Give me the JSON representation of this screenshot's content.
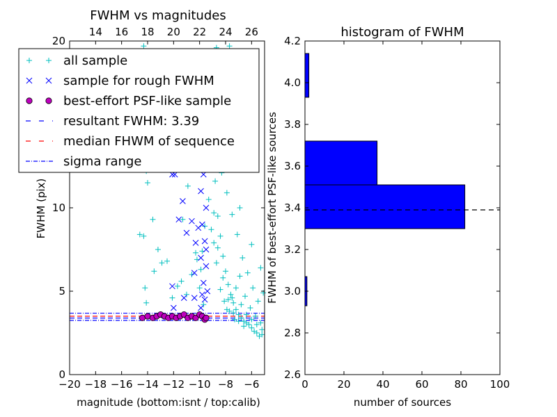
{
  "chart_data": [
    {
      "type": "scatter",
      "title": "FWHM vs magnitudes",
      "xlabel": "magnitude (bottom:isnt / top:calib)",
      "ylabel": "FWHM (pix)",
      "xlim": [
        -20,
        -5
      ],
      "ylim": [
        0,
        20
      ],
      "x_ticks": [
        -20,
        -18,
        -16,
        -14,
        -12,
        -10,
        -8,
        -6
      ],
      "x_tick_labels": [
        "−20",
        "−18",
        "−16",
        "−14",
        "−12",
        "−10",
        "−8",
        "−6"
      ],
      "y_ticks": [
        0,
        5,
        10,
        20
      ],
      "y_tick_labels": [
        "0",
        "5",
        "10",
        "20"
      ],
      "top_axis": {
        "offset": 32,
        "ticks": [
          14,
          16,
          18,
          20,
          22,
          24,
          26
        ],
        "tick_labels": [
          "14",
          "16",
          "18",
          "20",
          "22",
          "24",
          "26"
        ]
      },
      "grid": false,
      "legend_position": "top-left",
      "series": [
        {
          "name": "all sample",
          "marker": "+",
          "color": "#00bfbf",
          "points": [
            [
              -14.6,
              8.4
            ],
            [
              -14.3,
              8.3
            ],
            [
              -14.2,
              5.2
            ],
            [
              -14.1,
              4.3
            ],
            [
              -13.9,
              3.5
            ],
            [
              -13.6,
              9.3
            ],
            [
              -13.5,
              6.2
            ],
            [
              -13.2,
              7.5
            ],
            [
              -12.9,
              6.7
            ],
            [
              -12.5,
              6.8
            ],
            [
              -12.1,
              4.6
            ],
            [
              -11.7,
              5.3
            ],
            [
              -11.4,
              5.6
            ],
            [
              -11.0,
              4.8
            ],
            [
              -10.6,
              6.0
            ],
            [
              -10.3,
              7.3
            ],
            [
              -14.3,
              19.7
            ],
            [
              -14.1,
              12.2
            ],
            [
              -14.0,
              11.5
            ],
            [
              -10.9,
              11.3
            ],
            [
              -11.3,
              9.3
            ],
            [
              -10.2,
              6.9
            ],
            [
              -10.0,
              5.2
            ],
            [
              -9.7,
              4.2
            ],
            [
              -9.5,
              16.5
            ],
            [
              -9.2,
              19.3
            ],
            [
              -9.0,
              14.3
            ],
            [
              -8.8,
              11.6
            ],
            [
              -8.6,
              9.5
            ],
            [
              -8.4,
              8.3
            ],
            [
              -8.2,
              7.1
            ],
            [
              -8.0,
              6.2
            ],
            [
              -7.8,
              5.4
            ],
            [
              -7.6,
              4.8
            ],
            [
              -7.4,
              4.3
            ],
            [
              -7.2,
              3.9
            ],
            [
              -7.0,
              3.6
            ],
            [
              -6.8,
              3.4
            ],
            [
              -6.6,
              3.2
            ],
            [
              -6.4,
              3.1
            ],
            [
              -6.2,
              3.0
            ],
            [
              -6.0,
              2.8
            ],
            [
              -5.8,
              2.6
            ],
            [
              -5.6,
              2.5
            ],
            [
              -5.4,
              2.3
            ],
            [
              -5.2,
              2.4
            ],
            [
              -8.5,
              13.8
            ],
            [
              -8.3,
              12.1
            ],
            [
              -7.9,
              10.9
            ],
            [
              -7.5,
              9.6
            ],
            [
              -7.1,
              8.4
            ],
            [
              -6.7,
              7.0
            ],
            [
              -6.3,
              6.1
            ],
            [
              -5.9,
              5.2
            ],
            [
              -5.5,
              4.4
            ],
            [
              -8.7,
              19.6
            ],
            [
              -8.1,
              18.3
            ],
            [
              -7.7,
              19.7
            ],
            [
              -7.3,
              18.8
            ],
            [
              -8.9,
              9.7
            ],
            [
              -8.6,
              7.6
            ],
            [
              -8.2,
              5.8
            ],
            [
              -7.8,
              4.5
            ],
            [
              -7.4,
              3.7
            ],
            [
              -7.0,
              3.2
            ],
            [
              -6.6,
              2.9
            ],
            [
              -9.3,
              10.5
            ],
            [
              -9.1,
              8.7
            ],
            [
              -8.9,
              7.9
            ],
            [
              -8.7,
              6.7
            ],
            [
              -8.4,
              5.1
            ],
            [
              -8.1,
              4.4
            ],
            [
              -7.7,
              3.8
            ],
            [
              -7.3,
              3.3
            ],
            [
              -6.9,
              5.9
            ],
            [
              -6.5,
              4.7
            ],
            [
              -6.1,
              4.0
            ],
            [
              -5.7,
              3.5
            ],
            [
              -5.3,
              3.1
            ],
            [
              -5.1,
              4.9
            ],
            [
              -5.3,
              6.4
            ],
            [
              -6.0,
              7.8
            ],
            [
              -6.9,
              10.0
            ],
            [
              -7.6,
              12.3
            ],
            [
              -8.0,
              14.6
            ],
            [
              -8.4,
              16.2
            ],
            [
              -8.8,
              17.5
            ],
            [
              -9.4,
              12.8
            ],
            [
              -9.6,
              8.9
            ],
            [
              -9.8,
              7.4
            ],
            [
              -9.9,
              6.3
            ],
            [
              -7.9,
              3.9
            ],
            [
              -7.5,
              4.6
            ],
            [
              -7.2,
              5.2
            ],
            [
              -6.8,
              4.2
            ],
            [
              -6.4,
              3.6
            ],
            [
              -6.0,
              3.3
            ],
            [
              -5.6,
              3.0
            ],
            [
              -5.2,
              2.7
            ]
          ]
        },
        {
          "name": "sample for rough FWHM",
          "marker": "x",
          "color": "#0000ff",
          "points": [
            [
              -12.1,
              12.0
            ],
            [
              -11.9,
              12.0
            ],
            [
              -11.3,
              10.4
            ],
            [
              -11.6,
              9.3
            ],
            [
              -11.0,
              8.5
            ],
            [
              -10.6,
              9.2
            ],
            [
              -10.3,
              7.9
            ],
            [
              -10.1,
              8.8
            ],
            [
              -12.1,
              5.3
            ],
            [
              -11.2,
              4.6
            ],
            [
              -12.0,
              4.0
            ],
            [
              -10.4,
              6.1
            ],
            [
              -9.9,
              4.0
            ],
            [
              -9.9,
              15.2
            ],
            [
              -9.8,
              16.8
            ],
            [
              -9.7,
              17.6
            ],
            [
              -9.6,
              14.1
            ],
            [
              -9.7,
              12.0
            ],
            [
              -9.9,
              11.0
            ],
            [
              -9.5,
              10.0
            ],
            [
              -9.8,
              9.0
            ],
            [
              -9.6,
              8.0
            ],
            [
              -9.9,
              7.0
            ],
            [
              -9.5,
              6.5
            ],
            [
              -9.7,
              5.5
            ],
            [
              -9.8,
              4.8
            ],
            [
              -9.6,
              4.5
            ],
            [
              -9.5,
              7.5
            ],
            [
              -9.4,
              5.0
            ],
            [
              -9.7,
              13.0
            ],
            [
              -10.2,
              12.4
            ],
            [
              -10.0,
              12.8
            ],
            [
              -10.4,
              4.6
            ]
          ]
        },
        {
          "name": "best-effort PSF-like sample",
          "marker": "o",
          "color": "#bf00bf",
          "points": [
            [
              -14.4,
              3.4
            ],
            [
              -14.0,
              3.5
            ],
            [
              -13.6,
              3.4
            ],
            [
              -13.3,
              3.5
            ],
            [
              -13.0,
              3.6
            ],
            [
              -12.7,
              3.5
            ],
            [
              -12.4,
              3.4
            ],
            [
              -12.1,
              3.5
            ],
            [
              -11.8,
              3.4
            ],
            [
              -11.5,
              3.5
            ],
            [
              -11.2,
              3.6
            ],
            [
              -10.9,
              3.4
            ],
            [
              -10.6,
              3.5
            ],
            [
              -10.3,
              3.4
            ],
            [
              -10.0,
              3.6
            ],
            [
              -9.8,
              3.5
            ],
            [
              -9.6,
              3.3
            ],
            [
              -9.5,
              3.4
            ]
          ]
        }
      ],
      "reference_lines": [
        {
          "name": "resultant FWHM: 3.39",
          "value": 3.39,
          "style": "dashed",
          "color": "#0000ff"
        },
        {
          "name": "median FHWM of sequence",
          "value": 3.5,
          "style": "dashed",
          "color": "#ff0000"
        },
        {
          "name": "sigma range",
          "values": [
            3.25,
            3.68
          ],
          "style": "dashdot",
          "color": "#0000ff"
        }
      ]
    },
    {
      "type": "bar",
      "orientation": "horizontal",
      "title": "histogram of FWHM",
      "xlabel": "number of sources",
      "ylabel": "FWHM of best-effort PSF-like sources",
      "xlim": [
        0,
        100
      ],
      "ylim": [
        2.6,
        4.2
      ],
      "x_ticks": [
        0,
        20,
        40,
        60,
        80,
        100
      ],
      "y_ticks": [
        2.6,
        2.8,
        3.0,
        3.2,
        3.4,
        3.6,
        3.8,
        4.0,
        4.2
      ],
      "y_tick_labels": [
        "2.6",
        "2.8",
        "3.0",
        "3.2",
        "3.4",
        "3.6",
        "3.8",
        "4.0",
        "4.2"
      ],
      "color": "#0000ff",
      "bins": [
        {
          "from": 2.93,
          "to": 3.07,
          "count": 1
        },
        {
          "from": 3.09,
          "to": 3.3,
          "count": 0
        },
        {
          "from": 3.3,
          "to": 3.51,
          "count": 82
        },
        {
          "from": 3.51,
          "to": 3.72,
          "count": 37
        },
        {
          "from": 3.72,
          "to": 3.93,
          "count": 0
        },
        {
          "from": 3.93,
          "to": 4.14,
          "count": 2
        }
      ],
      "reference_line": {
        "value": 3.39,
        "style": "dashed",
        "color": "#000000"
      }
    }
  ]
}
